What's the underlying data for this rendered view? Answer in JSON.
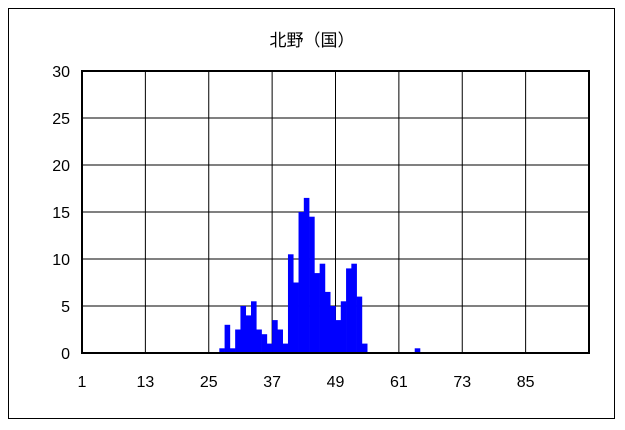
{
  "chart_data": {
    "type": "bar",
    "title": "北野（国）",
    "xlabel": "",
    "ylabel": "",
    "x_ticks": [
      "1",
      "13",
      "25",
      "37",
      "49",
      "61",
      "73",
      "85"
    ],
    "y_ticks": [
      "0",
      "5",
      "10",
      "15",
      "20",
      "25",
      "30"
    ],
    "xlim": [
      1,
      97
    ],
    "ylim": [
      0,
      30
    ],
    "grid": true,
    "bar_color": "#0000ff",
    "categories": [
      1,
      2,
      3,
      4,
      5,
      6,
      7,
      8,
      9,
      10,
      11,
      12,
      13,
      14,
      15,
      16,
      17,
      18,
      19,
      20,
      21,
      22,
      23,
      24,
      25,
      26,
      27,
      28,
      29,
      30,
      31,
      32,
      33,
      34,
      35,
      36,
      37,
      38,
      39,
      40,
      41,
      42,
      43,
      44,
      45,
      46,
      47,
      48,
      49,
      50,
      51,
      52,
      53,
      54,
      55,
      56,
      57,
      58,
      59,
      60,
      61,
      62,
      63,
      64,
      65,
      66,
      67,
      68,
      69,
      70,
      71,
      72,
      73,
      74,
      75,
      76,
      77,
      78,
      79,
      80,
      81,
      82,
      83,
      84,
      85,
      86,
      87,
      88,
      89,
      90,
      91,
      92,
      93,
      94,
      95,
      96
    ],
    "values": [
      0,
      0,
      0,
      0,
      0,
      0,
      0,
      0,
      0,
      0,
      0,
      0,
      0,
      0,
      0,
      0,
      0,
      0,
      0,
      0,
      0,
      0,
      0,
      0,
      0,
      0,
      0.5,
      3,
      0.5,
      2.5,
      5,
      4,
      5.5,
      2.5,
      2,
      1,
      3.5,
      2.5,
      1,
      10.5,
      7.5,
      15,
      16.5,
      14.5,
      8.5,
      9.5,
      6.5,
      5,
      3.5,
      5.5,
      9,
      9.5,
      6,
      1,
      0,
      0,
      0,
      0,
      0,
      0,
      0,
      0,
      0,
      0.5,
      0,
      0,
      0,
      0,
      0,
      0,
      0,
      0,
      0,
      0,
      0,
      0,
      0,
      0,
      0,
      0,
      0,
      0,
      0,
      0,
      0,
      0,
      0,
      0,
      0,
      0,
      0,
      0,
      0,
      0,
      0,
      0
    ]
  }
}
